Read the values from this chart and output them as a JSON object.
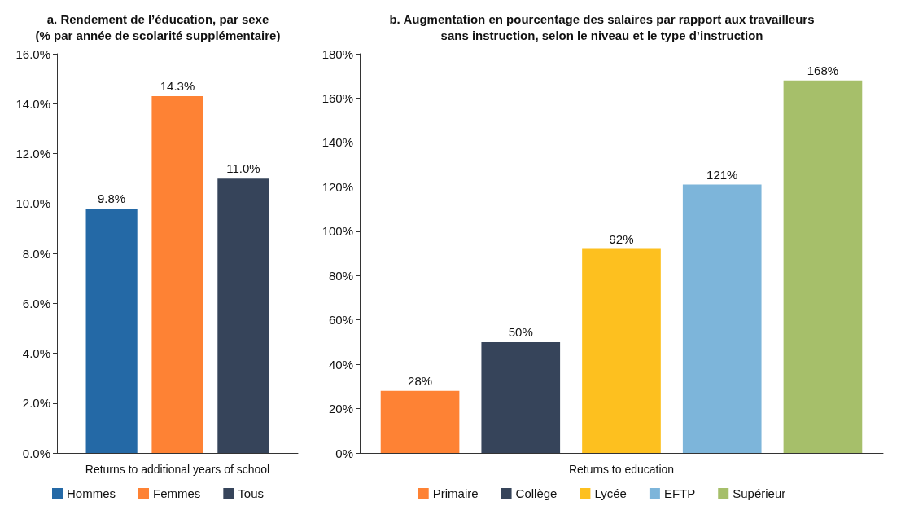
{
  "chart_data": [
    {
      "type": "bar",
      "title": "a. Rendement de l’éducation, par sexe\n(% par année de scolarité supplémentaire)",
      "xlabel": "Returns to additional years of school",
      "categories": [
        null
      ],
      "series": [
        {
          "name": "Hommes",
          "color": "#2469a6",
          "values": [
            9.8
          ],
          "value_labels": [
            "9.8%"
          ]
        },
        {
          "name": "Femmes",
          "color": "#fe8234",
          "values": [
            14.3
          ],
          "value_labels": [
            "14.3%"
          ]
        },
        {
          "name": "Tous",
          "color": "#36445a",
          "values": [
            11.0
          ],
          "value_labels": [
            "11.0%"
          ]
        }
      ],
      "ylim": [
        0,
        16
      ],
      "yticks": [
        {
          "value": 0,
          "label": "0.0%"
        },
        {
          "value": 2,
          "label": "2.0%"
        },
        {
          "value": 4,
          "label": "4.0%"
        },
        {
          "value": 6,
          "label": "6.0%"
        },
        {
          "value": 8,
          "label": "8.0%"
        },
        {
          "value": 10,
          "label": "10.0%"
        },
        {
          "value": 12,
          "label": "12.0%"
        },
        {
          "value": 14,
          "label": "14.0%"
        },
        {
          "value": 16,
          "label": "16.0%"
        }
      ],
      "legend": "bottom"
    },
    {
      "type": "bar",
      "title": "b. Augmentation en pourcentage des salaires par rapport aux travailleurs\nsans instruction, selon le niveau et le type d’instruction",
      "xlabel": "Returns to education",
      "categories": [
        null
      ],
      "series": [
        {
          "name": "Primaire",
          "color": "#fe8234",
          "values": [
            28
          ],
          "value_labels": [
            "28%"
          ]
        },
        {
          "name": "Collège",
          "color": "#36445a",
          "values": [
            50
          ],
          "value_labels": [
            "50%"
          ]
        },
        {
          "name": "Lycée",
          "color": "#fdc01f",
          "values": [
            92
          ],
          "value_labels": [
            "92%"
          ]
        },
        {
          "name": "EFTP",
          "color": "#7db5da",
          "values": [
            121
          ],
          "value_labels": [
            "121%"
          ]
        },
        {
          "name": "Supérieur",
          "color": "#a6bf6a",
          "values": [
            168
          ],
          "value_labels": [
            "168%"
          ]
        }
      ],
      "ylim": [
        0,
        180
      ],
      "yticks": [
        {
          "value": 0,
          "label": "0%"
        },
        {
          "value": 20,
          "label": "20%"
        },
        {
          "value": 40,
          "label": "40%"
        },
        {
          "value": 60,
          "label": "60%"
        },
        {
          "value": 80,
          "label": "80%"
        },
        {
          "value": 100,
          "label": "100%"
        },
        {
          "value": 120,
          "label": "120%"
        },
        {
          "value": 140,
          "label": "140%"
        },
        {
          "value": 160,
          "label": "160%"
        },
        {
          "value": 180,
          "label": "180%"
        }
      ],
      "legend": "bottom"
    }
  ]
}
